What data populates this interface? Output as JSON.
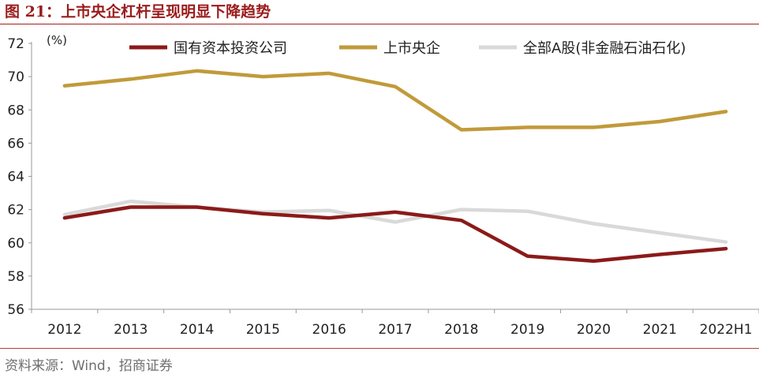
{
  "header": {
    "figure_number": "图 21：",
    "title": "上市央企杠杆呈现明显下降趋势"
  },
  "source": "资料来源：Wind，招商证券",
  "colors": {
    "title_red": "#9b1c1c",
    "series_1": "#8b1a1a",
    "series_2": "#c19a3a",
    "series_3": "#d9d9d9"
  },
  "chart_data": {
    "type": "line",
    "unit_label": "(%)",
    "ylim": [
      56,
      72
    ],
    "yticks": [
      56,
      58,
      60,
      62,
      64,
      66,
      68,
      70,
      72
    ],
    "grid": false,
    "legend_position": "top",
    "categories": [
      "2012",
      "2013",
      "2014",
      "2015",
      "2016",
      "2017",
      "2018",
      "2019",
      "2020",
      "2021",
      "2022H1"
    ],
    "series": [
      {
        "name": "国有资本投资公司",
        "color": "#8b1a1a",
        "values": [
          61.5,
          62.15,
          62.15,
          61.75,
          61.5,
          61.85,
          61.35,
          59.2,
          58.9,
          59.3,
          59.65
        ]
      },
      {
        "name": "上市央企",
        "color": "#c19a3a",
        "values": [
          69.45,
          69.85,
          70.35,
          70.0,
          70.2,
          69.4,
          66.8,
          66.95,
          66.95,
          67.3,
          67.9
        ]
      },
      {
        "name": "全部A股(非金融石油石化)",
        "color": "#d9d9d9",
        "values": [
          61.7,
          62.5,
          62.15,
          61.85,
          61.95,
          61.25,
          62.0,
          61.9,
          61.15,
          60.6,
          60.05
        ]
      }
    ]
  }
}
